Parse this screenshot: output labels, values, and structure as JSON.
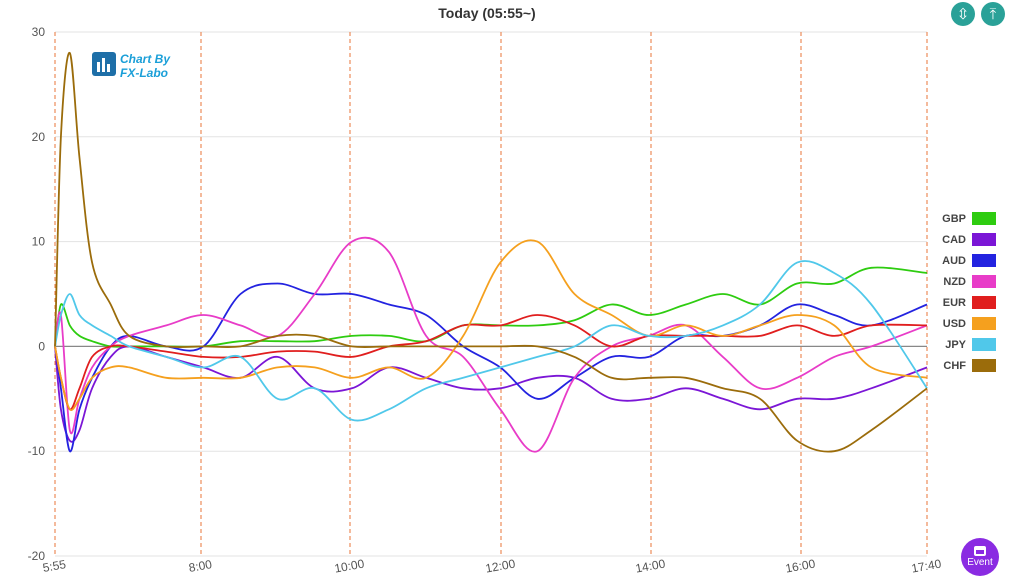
{
  "header": {
    "title": "Today  (05:55~)"
  },
  "toolbar": {
    "collapse_icon": "compress-vertical-icon",
    "expand_icon": "expand-top-icon"
  },
  "logo": {
    "line1": "Chart By",
    "line2": "FX-Labo"
  },
  "event_button": {
    "label": "Event",
    "icon": "calendar-icon",
    "color": "#8a2be2"
  },
  "chart_data": {
    "type": "line",
    "title": "Today  (05:55~)",
    "xlabel": "",
    "ylabel": "",
    "ylim": [
      -20,
      30
    ],
    "yticks": [
      -20,
      -10,
      0,
      10,
      20,
      30
    ],
    "xticks": [
      "5:55",
      "8:00",
      "10:00",
      "12:00",
      "14:00",
      "16:00",
      "17:40"
    ],
    "legend_position": "right",
    "grid": "horizontal solid, vertical dashed",
    "x": [
      0,
      0.08,
      0.2,
      0.33,
      0.5,
      0.75,
      1,
      1.5,
      2,
      2.5,
      3,
      3.5,
      4,
      4.5,
      5,
      5.5,
      6,
      6.5,
      7,
      7.5,
      8,
      8.5,
      9,
      9.5,
      10,
      10.5,
      11,
      11.75
    ],
    "series": [
      {
        "name": "GBP",
        "color": "#2ecc10",
        "values": [
          0,
          4,
          2,
          1,
          0.5,
          0,
          0,
          0,
          0,
          0.5,
          0.5,
          0.5,
          1,
          1,
          0.5,
          2,
          2,
          2,
          2.5,
          4,
          3,
          4,
          5,
          4,
          6,
          6,
          7.5,
          7
        ]
      },
      {
        "name": "CAD",
        "color": "#7b16d6",
        "values": [
          0,
          -6,
          -9,
          -8,
          -4,
          -1,
          0,
          -1,
          -2,
          -3,
          -1,
          -4,
          -4,
          -2,
          -3,
          -4,
          -4,
          -3,
          -3,
          -5,
          -5,
          -4,
          -5,
          -6,
          -5,
          -5,
          -4,
          -2
        ]
      },
      {
        "name": "AUD",
        "color": "#2323e0",
        "values": [
          0,
          -4,
          -10,
          -6,
          -3,
          0,
          1,
          0,
          0,
          5,
          6,
          5,
          5,
          4,
          3,
          0,
          -2,
          -5,
          -3,
          -1,
          -1,
          1,
          1,
          2,
          4,
          3,
          2,
          4
        ]
      },
      {
        "name": "NZD",
        "color": "#e83cc8",
        "values": [
          0,
          3,
          -8,
          -5,
          -2,
          0,
          1,
          2,
          3,
          2,
          1,
          5,
          10,
          9,
          1,
          -1,
          -6,
          -10,
          -3,
          0,
          1,
          2,
          -1,
          -4,
          -3,
          -1,
          0,
          2
        ]
      },
      {
        "name": "EUR",
        "color": "#e01e1e",
        "values": [
          0,
          -3,
          -6,
          -4,
          -1,
          0,
          0,
          -0.5,
          -1,
          -1,
          -0.5,
          -0.5,
          -1,
          0,
          0.5,
          2,
          2,
          3,
          2,
          0,
          1,
          1,
          1,
          1,
          2,
          1,
          2,
          2
        ]
      },
      {
        "name": "USD",
        "color": "#f5a01e",
        "values": [
          0,
          -3,
          -6,
          -5,
          -3,
          -2,
          -2,
          -3,
          -3,
          -3,
          -2,
          -2,
          -3,
          -2,
          -3,
          1,
          8,
          10,
          5,
          3,
          1,
          2,
          1,
          2,
          3,
          2,
          -2,
          -3
        ]
      },
      {
        "name": "JPY",
        "color": "#50c8ea",
        "values": [
          0,
          3,
          5,
          3,
          2,
          1,
          0,
          -1,
          -2,
          -1,
          -5,
          -4,
          -7,
          -6,
          -4,
          -3,
          -2,
          -1,
          0,
          2,
          1,
          1,
          2,
          4,
          8,
          7,
          4,
          -4
        ]
      },
      {
        "name": "CHF",
        "color": "#9b6c0b",
        "values": [
          0,
          20,
          28,
          18,
          8,
          4,
          1,
          0,
          0,
          0,
          1,
          1,
          0,
          0,
          0,
          0,
          0,
          0,
          -1,
          -3,
          -3,
          -3,
          -4,
          -5,
          -9,
          -10,
          -8,
          -4
        ]
      }
    ]
  }
}
